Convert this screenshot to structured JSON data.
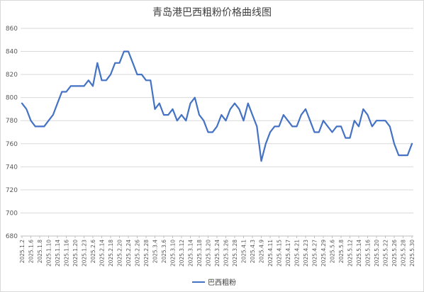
{
  "chart_data": {
    "type": "line",
    "title": "青岛港巴西粗粉价格曲线图",
    "xlabel": "",
    "ylabel": "",
    "ylim": [
      680,
      860
    ],
    "yticks": [
      680,
      700,
      720,
      740,
      760,
      780,
      800,
      820,
      840,
      860
    ],
    "grid": true,
    "legend_position": "bottom",
    "x_tick_labels": [
      "2025.1.2",
      "2025.1.6",
      "2025.1.8",
      "2025.1.10",
      "2025.1.14",
      "2025.1.16",
      "2025.1.20",
      "2025.1.23",
      "2025.2.6",
      "2025.2.14",
      "2025.2.18",
      "2025.2.20",
      "2025.2.24",
      "2025.2.26",
      "2025.2.28",
      "2025.3.4",
      "2025.3.6",
      "2025.3.10",
      "2025.3.12",
      "2025.3.14",
      "2025.3.18",
      "2025.3.20",
      "2025.3.24",
      "2025.3.26",
      "2025.3.28",
      "2025.4.1",
      "2025.4.3",
      "2025.4.9",
      "2025.4.11",
      "2025.4.15",
      "2025.4.17",
      "2025.4.21",
      "2025.4.23",
      "2025.4.27",
      "2025.4.29",
      "2025.5.6",
      "2025.5.8",
      "2025.5.12",
      "2025.5.14",
      "2025.5.16",
      "2025.5.20",
      "2025.5.22",
      "2025.5.26",
      "2025.5.28",
      "2025.5.30"
    ],
    "series": [
      {
        "name": "巴西粗粉",
        "color": "#4472c4",
        "values": [
          795,
          790,
          780,
          775,
          775,
          775,
          780,
          785,
          795,
          805,
          805,
          810,
          810,
          810,
          810,
          815,
          810,
          830,
          815,
          815,
          820,
          830,
          830,
          840,
          840,
          830,
          820,
          820,
          815,
          815,
          790,
          795,
          785,
          785,
          790,
          780,
          785,
          780,
          795,
          800,
          785,
          780,
          770,
          770,
          775,
          785,
          780,
          790,
          795,
          790,
          780,
          795,
          785,
          775,
          745,
          760,
          770,
          775,
          775,
          785,
          780,
          775,
          775,
          785,
          790,
          780,
          770,
          770,
          780,
          775,
          770,
          775,
          775,
          765,
          765,
          780,
          775,
          790,
          785,
          775,
          780,
          780,
          780,
          775,
          760,
          750,
          750,
          750,
          760
        ]
      }
    ]
  }
}
